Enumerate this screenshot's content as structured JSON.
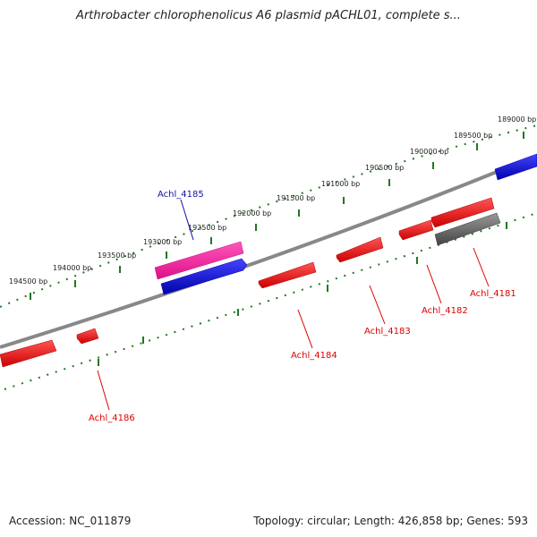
{
  "title": "Arthrobacter chlorophenolicus A6 plasmid pACHL01, complete s...",
  "footer": {
    "accession": "Accession: NC_011879",
    "summary": "Topology: circular; Length: 426,858 bp; Genes: 593"
  },
  "colors": {
    "forward_gene": "#ee1111",
    "reverse_gene": "#1111dd",
    "highlight_gene": "#ee2299",
    "pseudo_gene": "#666666",
    "backbone": "#888888",
    "tick": "#227722",
    "outer_label": "#1111aa",
    "inner_label": "#dd0000"
  },
  "ruler": {
    "tick_labels": [
      "189000 bp",
      "189500 bp",
      "190000 bp",
      "190500 bp",
      "191000 bp",
      "191500 bp",
      "192000 bp",
      "192500 bp",
      "193000 bp",
      "193500 bp",
      "194000 bp",
      "194500 bp"
    ]
  },
  "genes": {
    "labels_top": [
      "Achl_4185"
    ],
    "labels_bottom": [
      "Achl_4181",
      "Achl_4182",
      "Achl_4183",
      "Achl_4184",
      "Achl_4186"
    ]
  }
}
